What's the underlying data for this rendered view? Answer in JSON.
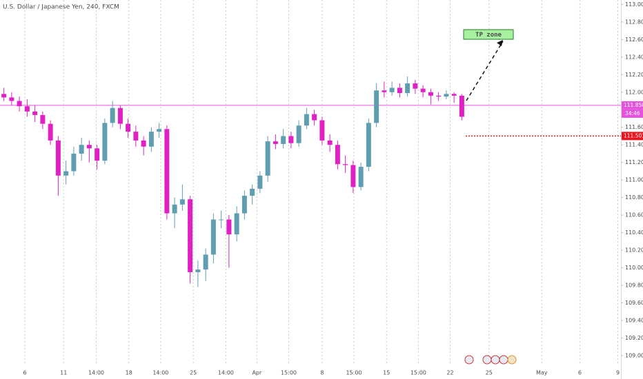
{
  "chart_data": {
    "type": "candlestick",
    "title": "U.S. Dollar / Japanese Yen, 240, FXCM",
    "bull_color": "#5f9db0",
    "bear_color": "#e01fc4",
    "candles": [
      [
        111.98,
        112.05,
        111.9,
        111.94
      ],
      [
        111.94,
        112.0,
        111.85,
        111.9
      ],
      [
        111.9,
        111.95,
        111.78,
        111.84
      ],
      [
        111.84,
        111.92,
        111.72,
        111.78
      ],
      [
        111.78,
        111.85,
        111.66,
        111.74
      ],
      [
        111.74,
        111.78,
        111.58,
        111.64
      ],
      [
        111.64,
        111.68,
        111.4,
        111.45
      ],
      [
        111.45,
        111.5,
        110.82,
        111.05
      ],
      [
        111.05,
        111.22,
        110.95,
        111.1
      ],
      [
        111.1,
        111.38,
        111.05,
        111.3
      ],
      [
        111.3,
        111.48,
        111.22,
        111.4
      ],
      [
        111.4,
        111.45,
        111.2,
        111.36
      ],
      [
        111.36,
        111.4,
        111.12,
        111.22
      ],
      [
        111.22,
        111.7,
        111.18,
        111.65
      ],
      [
        111.65,
        111.9,
        111.6,
        111.82
      ],
      [
        111.82,
        111.85,
        111.58,
        111.64
      ],
      [
        111.64,
        111.7,
        111.48,
        111.55
      ],
      [
        111.55,
        111.62,
        111.38,
        111.45
      ],
      [
        111.45,
        111.5,
        111.28,
        111.38
      ],
      [
        111.38,
        111.6,
        111.32,
        111.55
      ],
      [
        111.55,
        111.65,
        111.48,
        111.58
      ],
      [
        111.58,
        111.62,
        110.55,
        110.62
      ],
      [
        110.62,
        110.8,
        110.45,
        110.72
      ],
      [
        110.72,
        110.95,
        110.65,
        110.78
      ],
      [
        110.78,
        110.82,
        109.82,
        109.95
      ],
      [
        109.95,
        110.08,
        109.78,
        109.98
      ],
      [
        109.98,
        110.22,
        109.85,
        110.15
      ],
      [
        110.15,
        110.62,
        110.05,
        110.55
      ],
      [
        110.55,
        110.65,
        110.45,
        110.55
      ],
      [
        110.55,
        110.6,
        110.0,
        110.38
      ],
      [
        110.38,
        110.7,
        110.3,
        110.62
      ],
      [
        110.62,
        110.88,
        110.55,
        110.82
      ],
      [
        110.82,
        110.95,
        110.72,
        110.9
      ],
      [
        110.9,
        111.1,
        110.85,
        111.05
      ],
      [
        111.05,
        111.5,
        110.98,
        111.44
      ],
      [
        111.44,
        111.52,
        111.35,
        111.41
      ],
      [
        111.41,
        111.58,
        111.36,
        111.5
      ],
      [
        111.5,
        111.55,
        111.36,
        111.42
      ],
      [
        111.42,
        111.68,
        111.38,
        111.62
      ],
      [
        111.62,
        111.82,
        111.58,
        111.75
      ],
      [
        111.75,
        111.8,
        111.62,
        111.68
      ],
      [
        111.68,
        111.72,
        111.4,
        111.45
      ],
      [
        111.45,
        111.52,
        111.32,
        111.4
      ],
      [
        111.4,
        111.45,
        111.12,
        111.18
      ],
      [
        111.18,
        111.28,
        111.08,
        111.17
      ],
      [
        111.17,
        111.22,
        110.85,
        110.92
      ],
      [
        110.92,
        111.2,
        110.88,
        111.15
      ],
      [
        111.15,
        111.7,
        111.1,
        111.65
      ],
      [
        111.65,
        112.1,
        111.6,
        112.02
      ],
      [
        112.02,
        112.12,
        111.94,
        112.0
      ],
      [
        112.0,
        112.12,
        111.96,
        112.05
      ],
      [
        112.05,
        112.1,
        111.94,
        111.99
      ],
      [
        111.99,
        112.18,
        111.95,
        112.1
      ],
      [
        112.1,
        112.14,
        111.98,
        112.04
      ],
      [
        112.04,
        112.08,
        111.94,
        112.0
      ],
      [
        112.0,
        112.04,
        111.86,
        111.96
      ],
      [
        111.96,
        112.0,
        111.9,
        111.95
      ],
      [
        111.95,
        112.02,
        111.92,
        111.98
      ],
      [
        111.98,
        112.0,
        111.88,
        111.96
      ],
      [
        111.96,
        111.98,
        111.68,
        111.72
      ]
    ],
    "xlim": [
      -0.5,
      79.5
    ],
    "xticks": [
      {
        "value": 2.7,
        "label": "6"
      },
      {
        "value": 7.7,
        "label": "11"
      },
      {
        "value": 11.9,
        "label": "14:00"
      },
      {
        "value": 16.1,
        "label": "18"
      },
      {
        "value": 20.2,
        "label": "14:00"
      },
      {
        "value": 24.4,
        "label": "25"
      },
      {
        "value": 28.6,
        "label": "14:00"
      },
      {
        "value": 32.6,
        "label": "Apr"
      },
      {
        "value": 36.7,
        "label": "15:00"
      },
      {
        "value": 41,
        "label": "8"
      },
      {
        "value": 45.1,
        "label": "15:00"
      },
      {
        "value": 49.3,
        "label": "15"
      },
      {
        "value": 53.4,
        "label": "15:00"
      },
      {
        "value": 57.5,
        "label": "22"
      },
      {
        "value": 62.5,
        "label": "25"
      },
      {
        "value": 69.3,
        "label": "May"
      },
      {
        "value": 74.2,
        "label": "6"
      },
      {
        "value": 79.1,
        "label": "9"
      }
    ],
    "ylim": [
      108.89,
      113.05
    ],
    "yticks": [
      {
        "value": 109.0,
        "label": "109.000"
      },
      {
        "value": 109.2,
        "label": "109.200"
      },
      {
        "value": 109.4,
        "label": "109.400"
      },
      {
        "value": 109.6,
        "label": "109.600"
      },
      {
        "value": 109.8,
        "label": "109.800"
      },
      {
        "value": 110.0,
        "label": "110.000"
      },
      {
        "value": 110.2,
        "label": "110.200"
      },
      {
        "value": 110.4,
        "label": "110.400"
      },
      {
        "value": 110.6,
        "label": "110.600"
      },
      {
        "value": 110.8,
        "label": "110.800"
      },
      {
        "value": 111.0,
        "label": "111.000"
      },
      {
        "value": 111.2,
        "label": "111.200"
      },
      {
        "value": 111.4,
        "label": "111.400"
      },
      {
        "value": 111.6,
        "label": "111.600"
      },
      {
        "value": 111.8,
        "label": "111.800"
      },
      {
        "value": 112.0,
        "label": "112.000"
      },
      {
        "value": 112.2,
        "label": "112.200"
      },
      {
        "value": 112.4,
        "label": "112.400"
      },
      {
        "value": 112.6,
        "label": "112.600"
      },
      {
        "value": 112.8,
        "label": "112.800"
      },
      {
        "value": 113.0,
        "label": "113.000"
      }
    ],
    "levels": [
      {
        "value": 111.85,
        "label": "111.850",
        "color": "#e552dd",
        "style": "solid",
        "from": -0.5
      },
      {
        "value": 111.501,
        "label": "111.501",
        "color": "#e8161c",
        "style": "dotted",
        "from": 59.5
      }
    ],
    "countdown": "34:46",
    "annotation": "TP zone",
    "grid": true
  }
}
